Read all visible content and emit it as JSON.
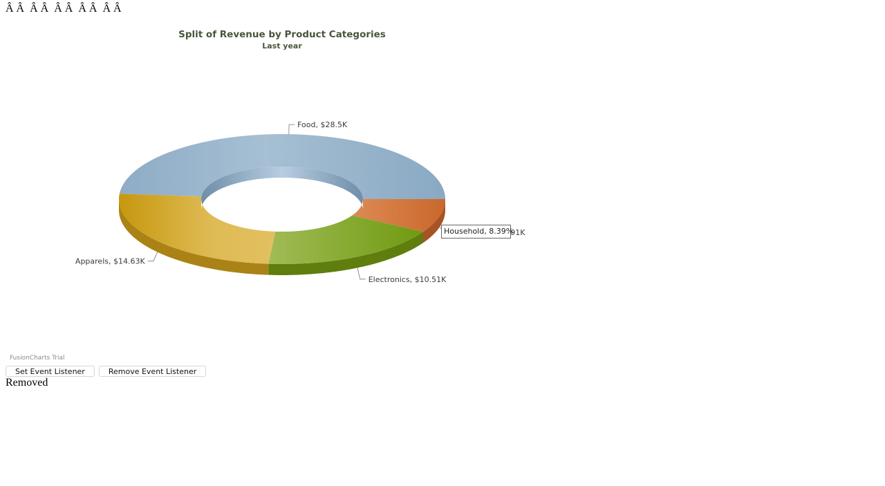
{
  "header_text": "Â Â  Â Â  Â Â  Â Â  Â Â",
  "chart_data": {
    "type": "pie",
    "variant": "doughnut-3d",
    "title": "Split of Revenue by Product Categories",
    "subtitle": "Last year",
    "slices": [
      {
        "label": "Food",
        "value": 28.5,
        "display": "Food, $28.5K",
        "color": "#8fb0c9"
      },
      {
        "label": "Household",
        "value": 4.91,
        "display": "Household, $4.91K",
        "color": "#d07436"
      },
      {
        "label": "Electronics",
        "value": 10.51,
        "display": "Electronics, $10.51K",
        "color": "#86a82a"
      },
      {
        "label": "Apparels",
        "value": 14.63,
        "display": "Apparels, $14.63K",
        "color": "#d9b03c"
      }
    ],
    "tooltip": "Household, 8.39%",
    "watermark": "FusionCharts Trial"
  },
  "buttons": {
    "set_label": "Set Event Listener",
    "remove_label": "Remove Event Listener"
  },
  "status_text": "Removed"
}
